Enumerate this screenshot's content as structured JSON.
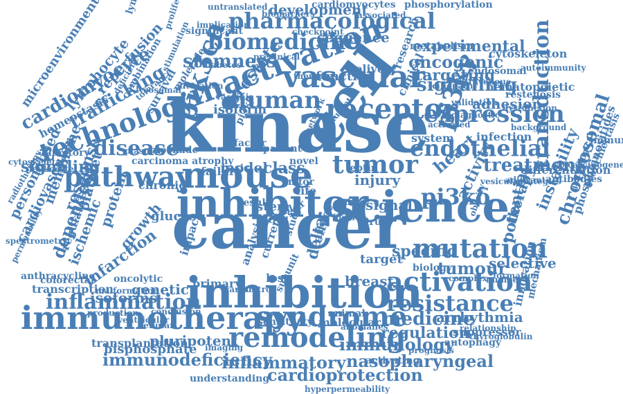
{
  "color": "#4a7fb5",
  "words": [
    {
      "text": "cancer"
    },
    {
      "text": "kinase"
    },
    {
      "text": "inhibition"
    },
    {
      "text": "cell"
    },
    {
      "text": "science"
    },
    {
      "text": "inhibitor"
    },
    {
      "text": "mouse"
    },
    {
      "text": "immunotherapy"
    },
    {
      "text": "syndrome"
    },
    {
      "text": "remodeling"
    },
    {
      "text": "inactivation"
    },
    {
      "text": "vascular"
    },
    {
      "text": "pharmacological"
    },
    {
      "text": "biomedicine"
    },
    {
      "text": "human"
    },
    {
      "text": "receptor"
    },
    {
      "text": "expression"
    },
    {
      "text": "endothelial"
    },
    {
      "text": "tumor"
    },
    {
      "text": "pi3kγ"
    },
    {
      "text": "pathway"
    },
    {
      "text": "technology"
    },
    {
      "text": "pik3ca"
    },
    {
      "text": "activation"
    },
    {
      "text": "mutation"
    },
    {
      "text": "resistance"
    },
    {
      "text": "inflammation"
    },
    {
      "text": "medicine"
    },
    {
      "text": "immunology"
    },
    {
      "text": "nasopharyngeal"
    },
    {
      "text": "immunodeficiency"
    },
    {
      "text": "cardioprotection"
    },
    {
      "text": "inflammatory"
    },
    {
      "text": "disease"
    },
    {
      "text": "trafficking"
    },
    {
      "text": "cardiomyocyte"
    },
    {
      "text": "lymphocyte"
    },
    {
      "text": "reperfusion"
    },
    {
      "text": "signalling"
    },
    {
      "text": "oncogenic"
    },
    {
      "text": "targeting"
    },
    {
      "text": "adhesion"
    },
    {
      "text": "infection"
    },
    {
      "text": "treatment"
    },
    {
      "text": "stemness"
    },
    {
      "text": "prostate"
    },
    {
      "text": "experimental"
    },
    {
      "text": "development"
    },
    {
      "text": "transduction"
    },
    {
      "text": "chromosomal"
    },
    {
      "text": "instability"
    },
    {
      "text": "therapy"
    },
    {
      "text": "heart"
    },
    {
      "text": "pi3kδ"
    },
    {
      "text": "activity"
    },
    {
      "text": "dependent"
    },
    {
      "text": "platelet"
    },
    {
      "text": "protein"
    },
    {
      "text": "growth"
    },
    {
      "text": "ischemic"
    },
    {
      "text": "infarction"
    },
    {
      "text": "isoforms"
    },
    {
      "text": "genetic"
    },
    {
      "text": "breast"
    },
    {
      "text": "tumour"
    },
    {
      "text": "selective"
    },
    {
      "text": "regulation"
    },
    {
      "text": "arrhythmia"
    },
    {
      "text": "suppressor"
    },
    {
      "text": "pluripotent"
    },
    {
      "text": "bisphosphate"
    },
    {
      "text": "specific"
    },
    {
      "text": "model"
    },
    {
      "text": "class"
    },
    {
      "text": "injury"
    },
    {
      "text": "potential"
    },
    {
      "text": "glucose"
    },
    {
      "text": "signaling"
    },
    {
      "text": "response"
    },
    {
      "text": "membrane"
    },
    {
      "text": "cardiovascular"
    },
    {
      "text": "personalised"
    },
    {
      "text": "regulatory"
    },
    {
      "text": "homeostasis"
    },
    {
      "text": "microenvironment"
    },
    {
      "text": "combination"
    },
    {
      "text": "survival"
    },
    {
      "text": "molecule"
    },
    {
      "text": "function"
    },
    {
      "text": "delivery"
    },
    {
      "text": "sequence"
    },
    {
      "text": "hematopoietic"
    },
    {
      "text": "restenosis"
    },
    {
      "text": "cytoskeleton"
    },
    {
      "text": "endosomal"
    },
    {
      "text": "metabolism"
    },
    {
      "text": "research"
    },
    {
      "text": "clinical"
    },
    {
      "text": "dysfunction"
    },
    {
      "text": "differentiation"
    },
    {
      "text": "antibodies"
    },
    {
      "text": "phosphoinositides"
    },
    {
      "text": "bronchiectasis"
    },
    {
      "text": "innovation"
    },
    {
      "text": "mechanism"
    },
    {
      "text": "primary"
    },
    {
      "text": "molecular"
    },
    {
      "text": "activating"
    },
    {
      "text": "transplantation"
    },
    {
      "text": "transcription"
    },
    {
      "text": "production"
    },
    {
      "text": "understanding"
    },
    {
      "text": "hyperpermeability"
    },
    {
      "text": "cardiomyocytes"
    },
    {
      "text": "phosphorylation"
    },
    {
      "text": "untranslated"
    },
    {
      "text": "biomarkers"
    },
    {
      "text": "associated"
    },
    {
      "text": "significant"
    },
    {
      "text": "implication"
    },
    {
      "text": "lymphadenopathy"
    },
    {
      "text": "proliferation"
    },
    {
      "text": "immunity"
    },
    {
      "text": "carcinogenesis"
    },
    {
      "text": "autoimmunity"
    },
    {
      "text": "intravenous"
    },
    {
      "text": "system"
    },
    {
      "text": "biology"
    },
    {
      "text": "mutant"
    },
    {
      "text": "leptin"
    },
    {
      "text": "signal"
    },
    {
      "text": "target"
    },
    {
      "text": "study"
    },
    {
      "text": "delta"
    },
    {
      "text": "effect"
    },
    {
      "text": "loss"
    },
    {
      "text": "sstr"
    },
    {
      "text": "stem"
    },
    {
      "text": "life"
    },
    {
      "text": "role"
    },
    {
      "text": "mtor"
    },
    {
      "text": "novel"
    },
    {
      "text": "patient"
    },
    {
      "text": "network"
    },
    {
      "text": "factor"
    },
    {
      "text": "pi3kβ"
    },
    {
      "text": "isoform"
    },
    {
      "text": "vaccinia"
    },
    {
      "text": "alteration"
    },
    {
      "text": "diabetes"
    },
    {
      "text": "failure"
    },
    {
      "text": "basic"
    },
    {
      "text": "result"
    },
    {
      "text": "trial"
    },
    {
      "text": "virus"
    },
    {
      "text": "data"
    },
    {
      "text": "focal"
    },
    {
      "text": "current"
    },
    {
      "text": "analysis"
    },
    {
      "text": "impact"
    },
    {
      "text": "oncolytic"
    },
    {
      "text": "malformation"
    },
    {
      "text": "colorectal"
    },
    {
      "text": "anthracycline"
    },
    {
      "text": "permeability"
    },
    {
      "text": "spectrometry"
    },
    {
      "text": "radiotherapy"
    },
    {
      "text": "leukocyte"
    },
    {
      "text": "cytoskeletal"
    },
    {
      "text": "olfactory"
    },
    {
      "text": "carcinoma atrophy"
    },
    {
      "text": "blockade"
    },
    {
      "text": "plasmon"
    },
    {
      "text": "chronic"
    },
    {
      "text": "sensitivity"
    },
    {
      "text": "animal"
    },
    {
      "text": "subunit"
    },
    {
      "text": "imaging"
    },
    {
      "text": "cellular"
    },
    {
      "text": "control"
    },
    {
      "text": "carotid"
    },
    {
      "text": "complex"
    },
    {
      "text": "formation"
    },
    {
      "text": "number"
    },
    {
      "text": "autophagy"
    },
    {
      "text": "relationship"
    },
    {
      "text": "thyroglobulin"
    },
    {
      "text": "prognosis"
    },
    {
      "text": "anomalies"
    },
    {
      "text": "conclusion"
    },
    {
      "text": "ventricular"
    },
    {
      "text": "adjuvant"
    },
    {
      "text": "validation"
    },
    {
      "text": "diagnostic"
    },
    {
      "text": "activated"
    },
    {
      "text": "background"
    },
    {
      "text": "vesicular"
    },
    {
      "text": "obesity"
    },
    {
      "text": "strategies"
    },
    {
      "text": "pathological"
    },
    {
      "text": "checkpoint"
    },
    {
      "text": "precinical"
    },
    {
      "text": "therapies"
    },
    {
      "text": "ciliopathy"
    },
    {
      "text": "tolerance"
    },
    {
      "text": "lysosomal"
    },
    {
      "text": "stimulation"
    },
    {
      "text": "deficiency"
    }
  ]
}
